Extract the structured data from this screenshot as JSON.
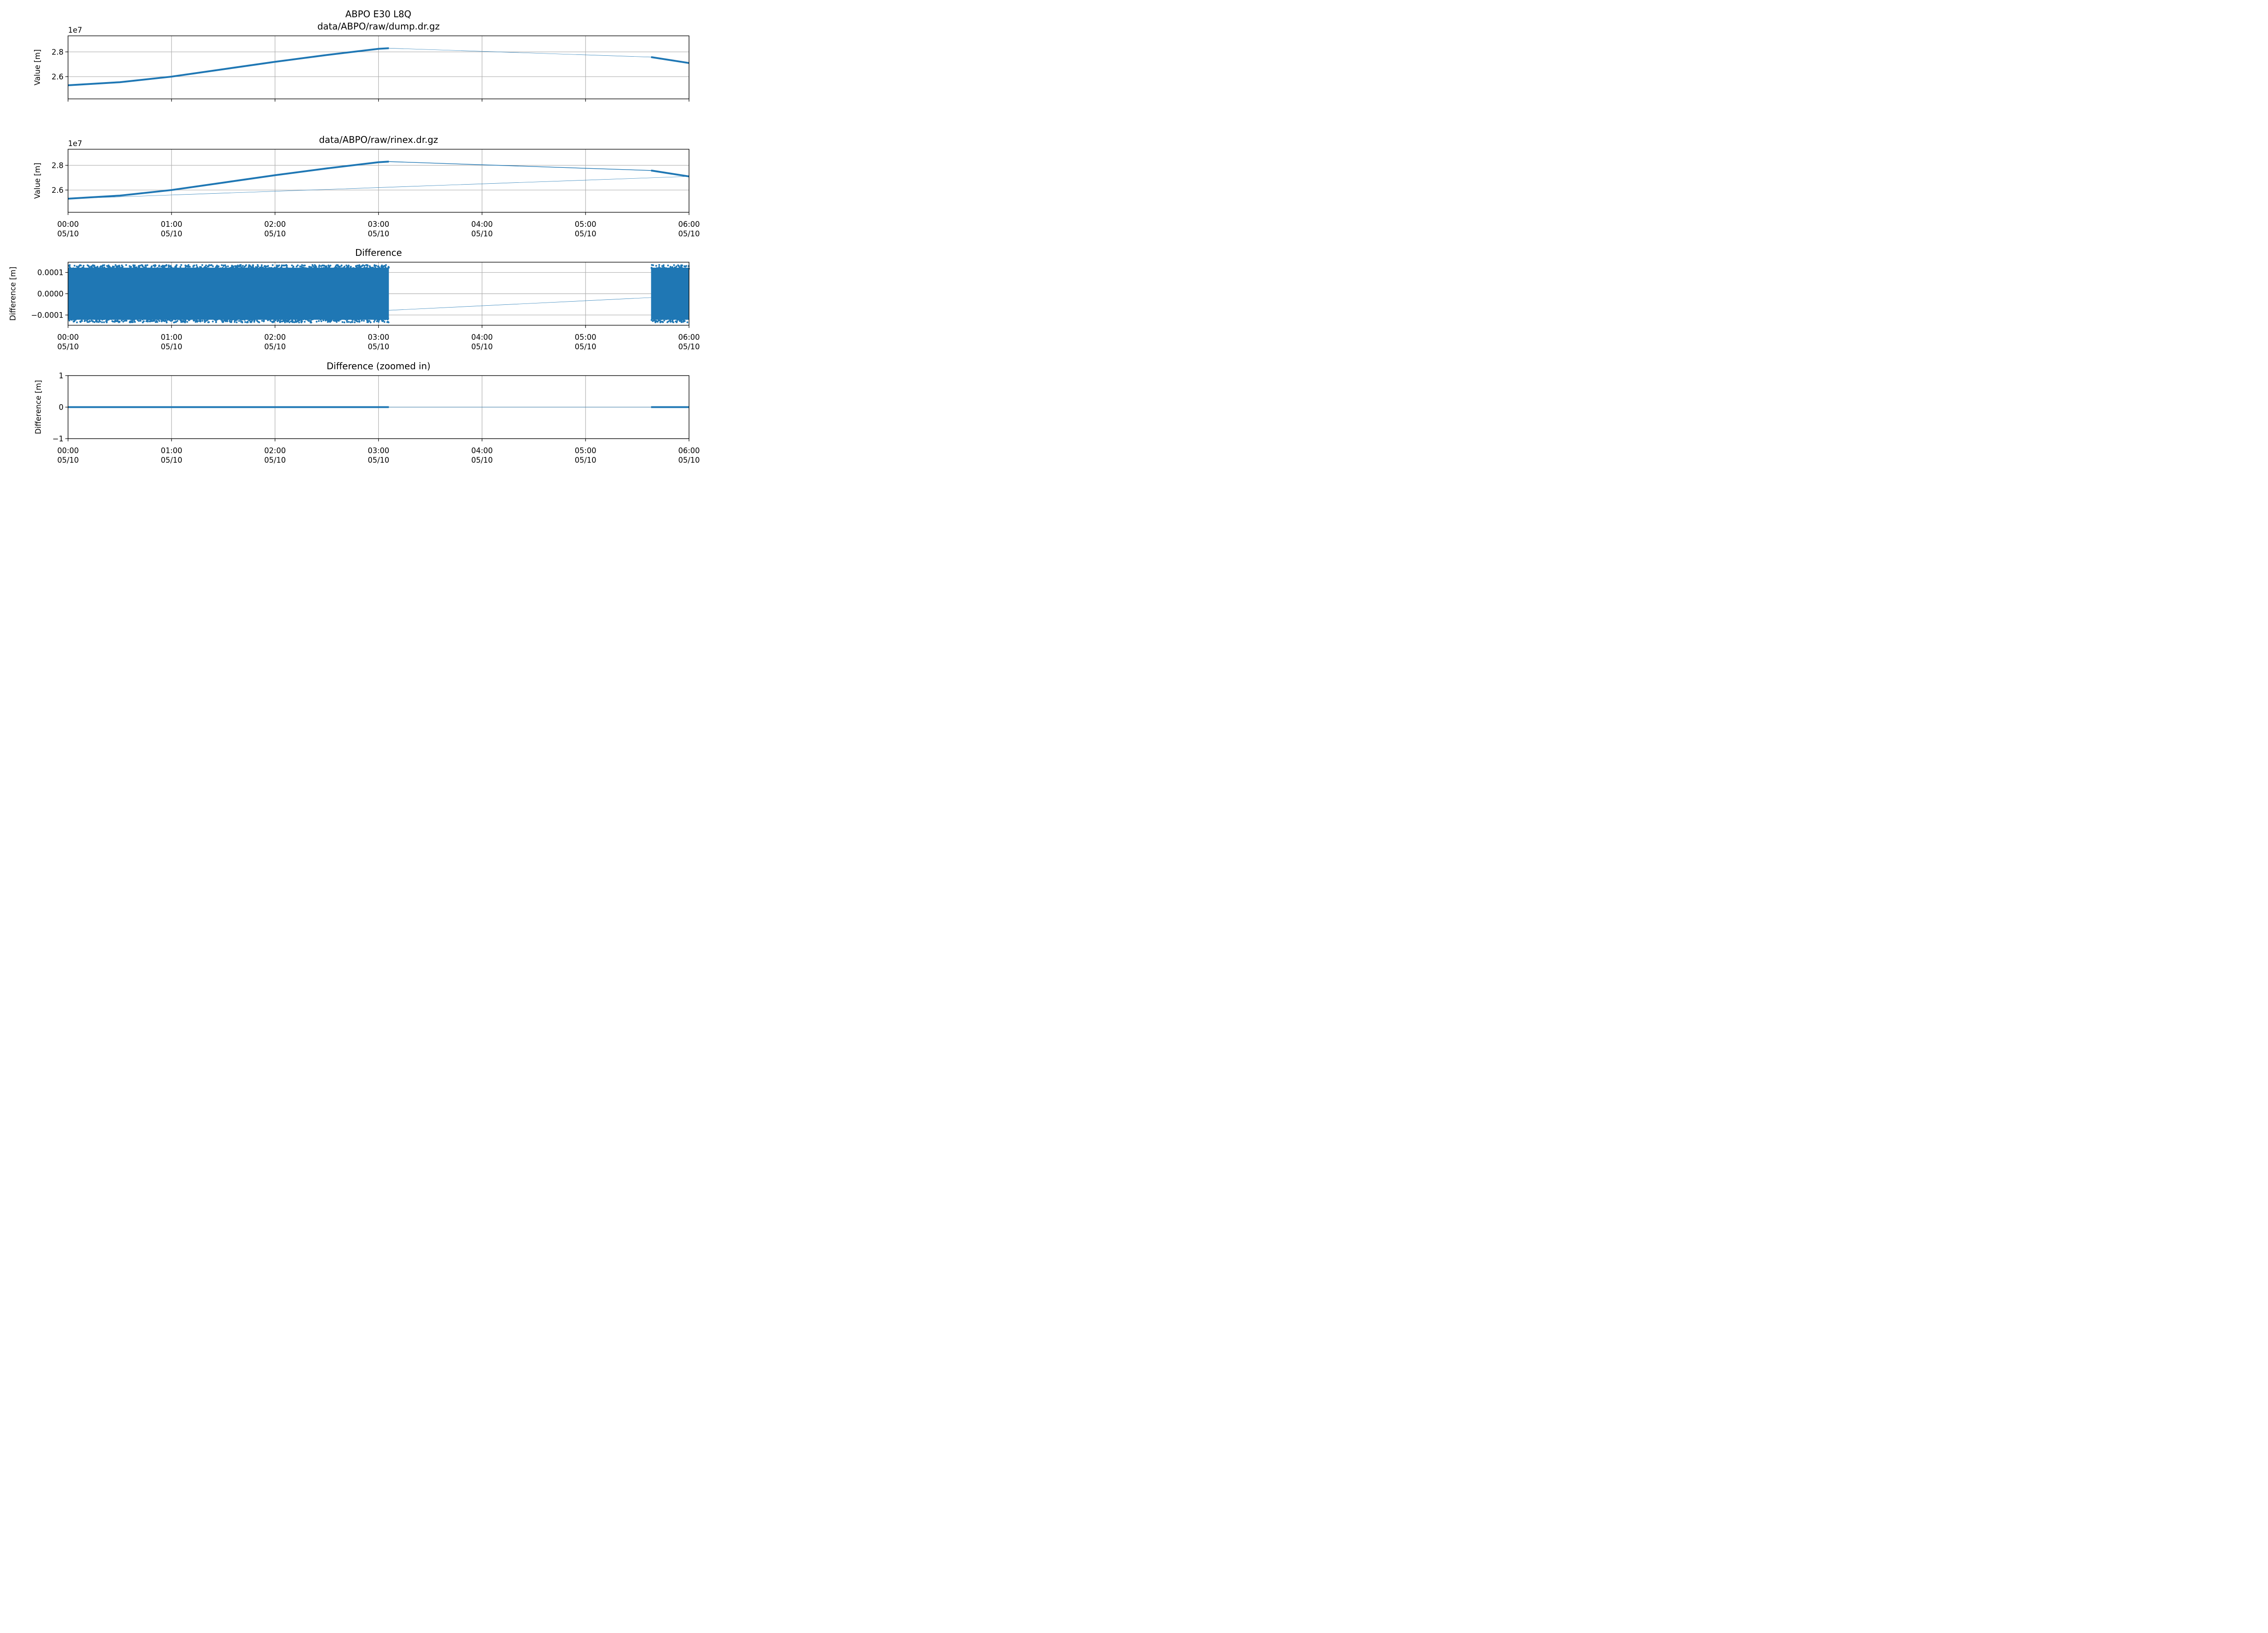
{
  "figure_title": [
    "ABPO E30 L8Q",
    "data/ABPO/raw/dump.dr.gz"
  ],
  "chart_data": [
    {
      "type": "line",
      "title": "data/ABPO/raw/dump.dr.gz",
      "ylabel": "Value [m]",
      "xlabel": "",
      "x_unit": "time (hh:mm) on 05/10",
      "xlim": [
        "00:00",
        "06:00"
      ],
      "ylim": [
        24200000,
        29300000
      ],
      "offset_text": "1e7",
      "yticks": [
        {
          "value": 26000000,
          "label": "2.6"
        },
        {
          "value": 28000000,
          "label": "2.8"
        }
      ],
      "xticks": [],
      "grid": true,
      "series": [
        {
          "style": "thick",
          "x": [
            "00:00",
            "00:30",
            "01:00",
            "01:30",
            "02:00",
            "02:30",
            "03:00",
            "03:06"
          ],
          "y": [
            25300000,
            25550000,
            26000000,
            26600000,
            27200000,
            27750000,
            28250000,
            28300000
          ]
        },
        {
          "style": "thin",
          "x": [
            "03:06",
            "05:38"
          ],
          "y": [
            28300000,
            27580000
          ]
        },
        {
          "style": "thick",
          "x": [
            "05:38",
            "06:00"
          ],
          "y": [
            27580000,
            27100000
          ]
        }
      ]
    },
    {
      "type": "line",
      "title": "data/ABPO/raw/rinex.dr.gz",
      "ylabel": "Value [m]",
      "xlabel": "",
      "x_unit": "time (hh:mm) on 05/10",
      "xlim": [
        "00:00",
        "06:00"
      ],
      "ylim": [
        24200000,
        29300000
      ],
      "offset_text": "1e7",
      "yticks": [
        {
          "value": 26000000,
          "label": "2.6"
        },
        {
          "value": 28000000,
          "label": "2.8"
        }
      ],
      "xticks": [
        {
          "value": "00:00",
          "line1": "00:00",
          "line2": "05/10"
        },
        {
          "value": "01:00",
          "line1": "01:00",
          "line2": "05/10"
        },
        {
          "value": "02:00",
          "line1": "02:00",
          "line2": "05/10"
        },
        {
          "value": "03:00",
          "line1": "03:00",
          "line2": "05/10"
        },
        {
          "value": "04:00",
          "line1": "04:00",
          "line2": "05/10"
        },
        {
          "value": "05:00",
          "line1": "05:00",
          "line2": "05/10"
        },
        {
          "value": "06:00",
          "line1": "06:00",
          "line2": "05/10"
        }
      ],
      "grid": true,
      "series": [
        {
          "style": "thick",
          "x": [
            "00:00",
            "00:30",
            "01:00",
            "01:30",
            "02:00",
            "02:30",
            "03:00",
            "03:06"
          ],
          "y": [
            25300000,
            25550000,
            26000000,
            26600000,
            27200000,
            27750000,
            28250000,
            28300000
          ]
        },
        {
          "style": "medium",
          "x": [
            "03:06",
            "05:38"
          ],
          "y": [
            28300000,
            27580000
          ]
        },
        {
          "style": "thick",
          "x": [
            "05:38",
            "06:00"
          ],
          "y": [
            27580000,
            27100000
          ]
        },
        {
          "style": "thin",
          "x": [
            "06:00",
            "00:00"
          ],
          "y": [
            27100000,
            25300000
          ]
        }
      ]
    },
    {
      "type": "scatter",
      "title": "Difference",
      "ylabel": "Difference [m]",
      "xlabel": "",
      "x_unit": "time (hh:mm) on 05/10",
      "xlim": [
        "00:00",
        "06:00"
      ],
      "ylim": [
        -0.000148,
        0.000148
      ],
      "yticks": [
        {
          "value": 0.0001,
          "label": "0.0001"
        },
        {
          "value": 0,
          "label": "0.0000"
        },
        {
          "value": -0.0001,
          "label": "−0.0001"
        }
      ],
      "xticks": [
        {
          "value": "00:00",
          "line1": "00:00",
          "line2": "05/10"
        },
        {
          "value": "01:00",
          "line1": "01:00",
          "line2": "05/10"
        },
        {
          "value": "02:00",
          "line1": "02:00",
          "line2": "05/10"
        },
        {
          "value": "03:00",
          "line1": "03:00",
          "line2": "05/10"
        },
        {
          "value": "04:00",
          "line1": "04:00",
          "line2": "05/10"
        },
        {
          "value": "05:00",
          "line1": "05:00",
          "line2": "05/10"
        },
        {
          "value": "06:00",
          "line1": "06:00",
          "line2": "05/10"
        }
      ],
      "grid": true,
      "scatter_bands": [
        {
          "x_start": "00:00",
          "x_end": "03:06",
          "y_min": -0.000135,
          "y_max": 0.000135
        },
        {
          "x_start": "05:38",
          "x_end": "06:00",
          "y_min": -0.000135,
          "y_max": 0.000135
        }
      ],
      "series": [
        {
          "style": "thin",
          "x": [
            "03:06",
            "05:38"
          ],
          "y": [
            -7.8e-05,
            -1.8e-05
          ]
        }
      ]
    },
    {
      "type": "line",
      "title": "Difference (zoomed in)",
      "ylabel": "Difference [m]",
      "xlabel": "",
      "x_unit": "time (hh:mm) on 05/10",
      "xlim": [
        "00:00",
        "06:00"
      ],
      "ylim": [
        -1,
        1
      ],
      "yticks": [
        {
          "value": 1,
          "label": "1"
        },
        {
          "value": 0,
          "label": "0"
        },
        {
          "value": -1,
          "label": "−1"
        }
      ],
      "xticks": [
        {
          "value": "00:00",
          "line1": "00:00",
          "line2": "05/10"
        },
        {
          "value": "01:00",
          "line1": "01:00",
          "line2": "05/10"
        },
        {
          "value": "02:00",
          "line1": "02:00",
          "line2": "05/10"
        },
        {
          "value": "03:00",
          "line1": "03:00",
          "line2": "05/10"
        },
        {
          "value": "04:00",
          "line1": "04:00",
          "line2": "05/10"
        },
        {
          "value": "05:00",
          "line1": "05:00",
          "line2": "05/10"
        },
        {
          "value": "06:00",
          "line1": "06:00",
          "line2": "05/10"
        }
      ],
      "grid": true,
      "series": [
        {
          "style": "thick",
          "x": [
            "00:00",
            "03:06"
          ],
          "y": [
            0,
            0
          ]
        },
        {
          "style": "thin",
          "x": [
            "03:06",
            "05:38"
          ],
          "y": [
            0,
            0
          ]
        },
        {
          "style": "thick",
          "x": [
            "05:38",
            "06:00"
          ],
          "y": [
            0,
            0
          ]
        }
      ]
    }
  ],
  "colors": {
    "series": "#1f77b4",
    "grid": "#b0b0b0",
    "axis": "#000000"
  }
}
